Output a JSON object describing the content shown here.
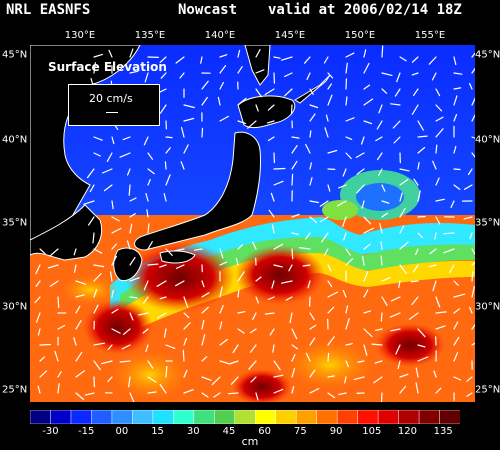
{
  "header": {
    "source": "NRL EASNFS",
    "mode": "Nowcast",
    "valid": "valid at 2006/02/14 18Z"
  },
  "axes": {
    "lon_labels": [
      "130°E",
      "135°E",
      "140°E",
      "145°E",
      "150°E",
      "155°E"
    ],
    "lat_labels": [
      "45°N",
      "40°N",
      "35°N",
      "30°N",
      "25°N"
    ]
  },
  "legend_box": {
    "title": "Surface Elevation",
    "ref_vector": "20 cm/s"
  },
  "colorbar": {
    "labels": [
      "-30",
      "-15",
      "00",
      "15",
      "30",
      "45",
      "60",
      "75",
      "90",
      "105",
      "120",
      "135"
    ],
    "unit": "cm",
    "colors": [
      "#000080",
      "#0000c8",
      "#0a28ff",
      "#1f5fff",
      "#2f8fff",
      "#3fbfff",
      "#20e0ff",
      "#30ffd0",
      "#40e080",
      "#50d050",
      "#b0e030",
      "#ffff00",
      "#ffd000",
      "#ffa000",
      "#ff7000",
      "#ff4000",
      "#ff1000",
      "#e00000",
      "#b00000",
      "#800000",
      "#600000"
    ]
  },
  "colors": {
    "land": "#000000",
    "coast": "#ffffff",
    "vectors": "#ffffff"
  }
}
